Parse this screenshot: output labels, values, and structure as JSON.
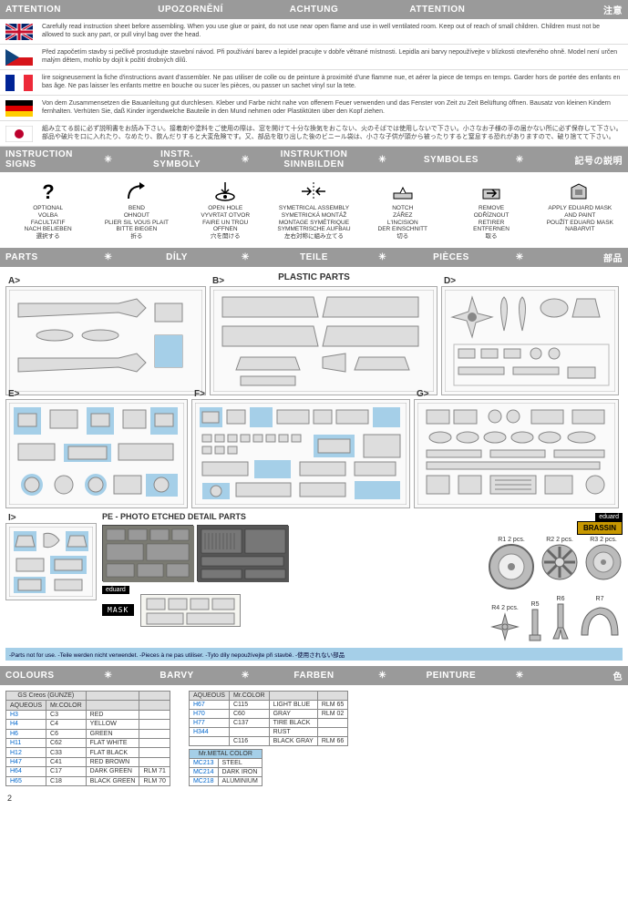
{
  "headers": {
    "attention": [
      "ATTENTION",
      "UPOZORNĚNÍ",
      "ACHTUNG",
      "ATTENTION",
      "注意"
    ],
    "signs": [
      "INSTRUCTION SIGNS",
      "INSTR. SYMBOLY",
      "INSTRUKTION SINNBILDEN",
      "SYMBOLES",
      "記号の説明"
    ],
    "parts": [
      "PARTS",
      "DÍLY",
      "TEILE",
      "PIÈCES",
      "部品"
    ],
    "colours": [
      "COLOURS",
      "BARVY",
      "FARBEN",
      "PEINTURE",
      "色"
    ]
  },
  "attention": [
    {
      "flag": "uk",
      "text": "Carefully read instruction sheet before assembling. When you use glue or paint, do not use near open flame and use in well ventilated room. Keep out of reach of small children. Children must not be allowed to suck any part, or pull vinyl bag over the head."
    },
    {
      "flag": "cz",
      "text": "Před započetím stavby si pečlivě prostudujte stavební návod. Při používání barev a lepidel pracujte v dobře větrané místnosti. Lepidla ani barvy nepoužívejte v blízkosti otevřeného ohně. Model není určen malým dětem, mohlo by dojít k požití drobných dílů."
    },
    {
      "flag": "fr",
      "text": "lire soigneusement la fiche d'instructions avant d'assembler. Ne pas utiliser de colle ou de peinture à proximité d'une flamme nue, et aérer la piece de temps en temps. Garder hors de portée des enfants en bas âge. Ne pas laisser les enfants mettre en bouche ou sucer les pièces, ou passer un sachet vinyl sur la tete."
    },
    {
      "flag": "de",
      "text": "Von dem Zusammensetzen die Bauanleitung gut durchlesen. Kleber und Farbe nicht nahe von offenem Feuer verwenden und das Fenster von Zeit zu Zeit Belüftung öffnen. Bausatz von kleinen Kindern fernhalten. Verhüten Sie, daß Kinder irgendwelche Bauteile in den Mund nehmen oder Plastiktüten über den Kopf ziehen."
    },
    {
      "flag": "jp",
      "text": "組み立てる前に必ず説明書をお読み下さい。接着剤や塗料をご使用の際は、窓を開けて十分な換気をおこない、火のそばでは使用しないで下さい。小さなお子様の手の届かない所に必ず保存して下さい。部品や破片を口に入れたり、なめたり、飲んだりすると大変危険です。又、部品を取り出した後のビニール袋は、小さな子供が頭から被ったりすると窒息する恐れがありますので、破り捨てて下さい。"
    }
  ],
  "signs": [
    {
      "icon": "question",
      "lines": [
        "OPTIONAL",
        "VOLBA",
        "FACULTATIF",
        "NACH BELIEBEN",
        "選択する"
      ]
    },
    {
      "icon": "bend",
      "lines": [
        "BEND",
        "OHNOUT",
        "PLIER SIL VOUS PLAIT",
        "BITTE BIEGEN",
        "折る"
      ]
    },
    {
      "icon": "hole",
      "lines": [
        "OPEN HOLE",
        "VYVRTAT OTVOR",
        "FAIRE UN TROU",
        "OFFNEN",
        "穴を開ける"
      ]
    },
    {
      "icon": "sym",
      "lines": [
        "SYMETRICAL ASSEMBLY",
        "SYMETRICKÁ MONTÁŽ",
        "MONTAGE SYMÉTRIQUE",
        "SYMMETRISCHE AUFBAU",
        "左右対称に組み立てる"
      ]
    },
    {
      "icon": "notch",
      "lines": [
        "NOTCH",
        "ZÁŘEZ",
        "L'INCISION",
        "DER EINSCHNITT",
        "切る"
      ]
    },
    {
      "icon": "remove",
      "lines": [
        "REMOVE",
        "ODŘÍZNOUT",
        "RETIRER",
        "ENTFERNEN",
        "取る"
      ]
    },
    {
      "icon": "mask",
      "lines": [
        "APPLY EDUARD MASK",
        "AND PAINT",
        "POUŽÍT EDUARD MASK",
        "NABARVIT"
      ]
    }
  ],
  "parts_title": "PLASTIC PARTS",
  "pe_title": "PE - PHOTO ETCHED DETAIL PARTS",
  "sprue_labels": [
    "A>",
    "B>",
    "D>",
    "E>",
    "F>",
    "G>",
    "I>"
  ],
  "brassin_label": "BRASSIN",
  "eduard_label": "eduard",
  "mask_label": "MASK",
  "resin": [
    {
      "label": "R1 2 pcs."
    },
    {
      "label": "R2 2 pcs."
    },
    {
      "label": "R3 2 pcs."
    },
    {
      "label": "R4 2 pcs."
    },
    {
      "label": "R5"
    },
    {
      "label": "R6"
    },
    {
      "label": "R7"
    }
  ],
  "note": "-Parts not for use. -Teile werden nicht verwendet. -Pieces à ne pas utiliser. -Tyto díly nepoužívejte při stavbě. -使用されない部品",
  "colours_left": {
    "header": "GS Creos (GUNZE)",
    "cols": [
      "AQUEOUS",
      "Mr.COLOR",
      "",
      ""
    ],
    "rows": [
      [
        "H3",
        "C3",
        "RED",
        ""
      ],
      [
        "H4",
        "C4",
        "YELLOW",
        ""
      ],
      [
        "H6",
        "C6",
        "GREEN",
        ""
      ],
      [
        "H11",
        "C62",
        "FLAT WHITE",
        ""
      ],
      [
        "H12",
        "C33",
        "FLAT BLACK",
        ""
      ],
      [
        "H47",
        "C41",
        "RED BROWN",
        ""
      ],
      [
        "H64",
        "C17",
        "DARK GREEN",
        "RLM 71"
      ],
      [
        "H65",
        "C18",
        "BLACK GREEN",
        "RLM 70"
      ]
    ]
  },
  "colours_right": {
    "cols": [
      "AQUEOUS",
      "Mr.COLOR",
      "",
      ""
    ],
    "rows": [
      [
        "H67",
        "C115",
        "LIGHT BLUE",
        "RLM 65"
      ],
      [
        "H70",
        "C60",
        "GRAY",
        "RLM 02"
      ],
      [
        "H77",
        "C137",
        "TIRE BLACK",
        ""
      ],
      [
        "H344",
        "",
        "RUST",
        ""
      ],
      [
        "",
        "C116",
        "BLACK GRAY",
        "RLM 66"
      ]
    ],
    "metal_header": "Mr.METAL COLOR",
    "metal_rows": [
      [
        "MC213",
        "STEEL"
      ],
      [
        "MC214",
        "DARK IRON"
      ],
      [
        "MC218",
        "ALUMINIUM"
      ]
    ]
  },
  "page": "2",
  "colors": {
    "header_bg": "#9a9a9a",
    "note_bg": "#a5cfe8",
    "highlight": "#a5cfe8",
    "link": "#0066cc"
  }
}
